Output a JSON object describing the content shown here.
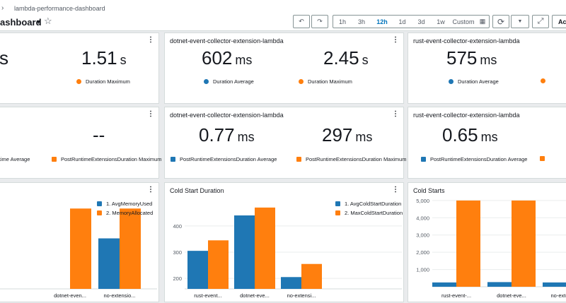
{
  "header": {
    "breadcrumb": "lambda-performance-dashboard",
    "title": "ashboard",
    "undo": "↶",
    "redo": "↷",
    "time_ranges": [
      "1h",
      "3h",
      "12h",
      "1d",
      "3d",
      "1w",
      "Custom"
    ],
    "active_range": "12h",
    "refresh": "⟳",
    "dropdown": "▼",
    "fullscreen": "⤢",
    "actions": "Ac"
  },
  "row1": [
    {
      "title": "",
      "avg": "s",
      "avg_unit": "",
      "max": "1.51",
      "max_unit": "s",
      "legend_avg": "e",
      "legend_max": "Duration Maximum"
    },
    {
      "title": "dotnet-event-collector-extension-lambda",
      "avg": "602",
      "avg_unit": "ms",
      "max": "2.45",
      "max_unit": "s",
      "legend_avg": "Duration Average",
      "legend_max": "Duration Maximum"
    },
    {
      "title": "rust-event-collector-extension-lambda",
      "avg": "575",
      "avg_unit": "ms",
      "max": "",
      "max_unit": "",
      "legend_avg": "Duration Average",
      "legend_max": ""
    }
  ],
  "row2": [
    {
      "title": "",
      "avg": "",
      "avg_unit": "",
      "max": "--",
      "max_unit": "",
      "legend_avg": "Runtime Average",
      "legend_max": "PostRuntimeExtensionsDuration Maximum"
    },
    {
      "title": "dotnet-event-collector-extension-lambda",
      "avg": "0.77",
      "avg_unit": "ms",
      "max": "297",
      "max_unit": "ms",
      "legend_avg": "PostRuntimeExtensionsDuration Average",
      "legend_max": "PostRuntimeExtensionsDuration Maximum"
    },
    {
      "title": "rust-event-collector-extension-lambda",
      "avg": "0.65",
      "avg_unit": "ms",
      "max": "",
      "max_unit": "",
      "legend_avg": "PostRuntimeExtensionsDuration Average",
      "legend_max": ""
    }
  ],
  "colors": {
    "blue": "#1f77b4",
    "orange": "#ff7f0e"
  },
  "chart_data": [
    {
      "type": "bar",
      "title": "",
      "categories": [
        "",
        "dotnet-even...",
        "no-extensio..."
      ],
      "series": [
        {
          "name": "1. AvgMemoryUsed",
          "values": [
            null,
            null,
            110
          ]
        },
        {
          "name": "2. MemoryAllocated",
          "values": [
            null,
            175,
            175
          ]
        }
      ],
      "legend": "top-right"
    },
    {
      "type": "bar",
      "title": "Cold Start Duration",
      "categories": [
        "rust-event...",
        "dotnet-eve...",
        "no-extensi..."
      ],
      "series": [
        {
          "name": "1. AvgColdStartDuration",
          "values": [
            305,
            440,
            205
          ]
        },
        {
          "name": "2. MaxColdStartDuration",
          "values": [
            345,
            470,
            255
          ]
        }
      ],
      "yticks": [
        200,
        300,
        400
      ],
      "legend": "top-right"
    },
    {
      "type": "bar",
      "title": "Cold Starts",
      "categories": [
        "rust-event-...",
        "dotnet-eve...",
        "no-extensio..."
      ],
      "series": [
        {
          "name": "",
          "values": [
            250,
            270,
            250
          ]
        },
        {
          "name": "",
          "values": [
            5000,
            5000,
            null
          ]
        }
      ],
      "yticks": [
        "1,000",
        "2,000",
        "3,000",
        "4,000",
        "5,000"
      ],
      "ymax": 5000
    }
  ]
}
